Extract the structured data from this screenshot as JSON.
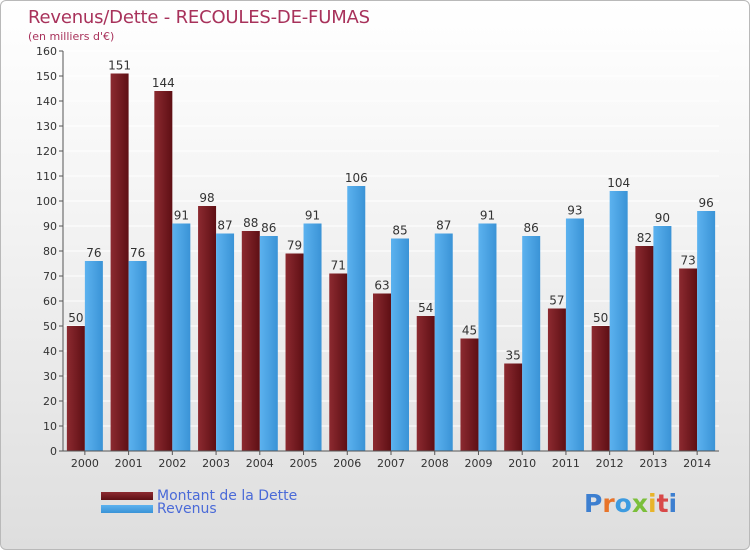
{
  "title": "Revenus/Dette - RECOULES-DE-FUMAS",
  "subtitle": "(en milliers d'€)",
  "colors": {
    "debt": "#7a1c22",
    "debt_light": "#a83a40",
    "revenue": "#3d9be0",
    "revenue_light": "#5cb2ef",
    "axis_text": "#333333",
    "grid": "#ffffff"
  },
  "legend": {
    "debt_label": "Montant de la Dette",
    "revenue_label": "Revenus"
  },
  "logo": {
    "text": "Proxiti",
    "colors": [
      "#3d7fd0",
      "#e8742a",
      "#3d9be0",
      "#7bbf3a",
      "#e8b42a",
      "#d84848",
      "#3d7fd0"
    ]
  },
  "chart_data": {
    "type": "bar",
    "title": "Revenus/Dette - RECOULES-DE-FUMAS",
    "ylabel": "(en milliers d'€)",
    "xlabel": "",
    "ylim": [
      0,
      160
    ],
    "yticks": [
      0,
      10,
      20,
      30,
      40,
      50,
      60,
      70,
      80,
      90,
      100,
      110,
      120,
      130,
      140,
      150,
      160
    ],
    "grid": true,
    "legend_position": "bottom-left",
    "categories": [
      "2000",
      "2001",
      "2002",
      "2003",
      "2004",
      "2005",
      "2006",
      "2007",
      "2008",
      "2009",
      "2010",
      "2011",
      "2012",
      "2013",
      "2014"
    ],
    "series": [
      {
        "name": "Montant de la Dette",
        "values": [
          50,
          151,
          144,
          98,
          88,
          79,
          71,
          63,
          54,
          45,
          35,
          57,
          50,
          82,
          73
        ]
      },
      {
        "name": "Revenus",
        "values": [
          76,
          76,
          91,
          87,
          86,
          91,
          106,
          85,
          87,
          91,
          86,
          93,
          104,
          90,
          96
        ]
      }
    ]
  }
}
